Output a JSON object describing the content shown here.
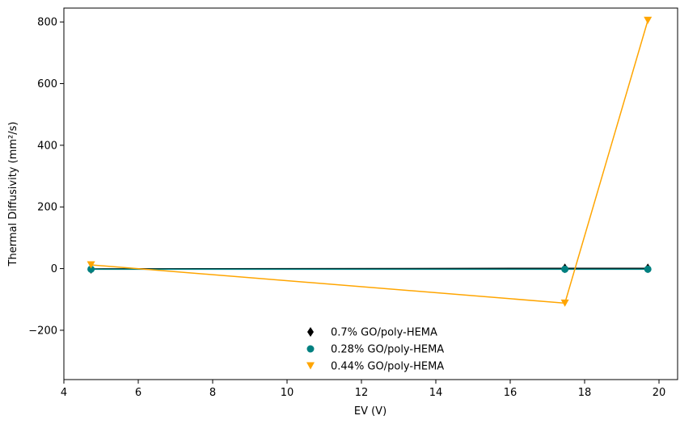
{
  "chart_data": {
    "type": "line",
    "xlabel": "EV (V)",
    "ylabel": "Thermal Diffusivity (mm²/s)",
    "xlim": [
      4,
      20.5
    ],
    "ylim": [
      -360,
      845
    ],
    "x_ticks": [
      4,
      6,
      8,
      10,
      12,
      14,
      16,
      18,
      20
    ],
    "y_ticks": [
      -200,
      0,
      200,
      400,
      600,
      800
    ],
    "y_tick_labels": [
      "−200",
      "0",
      "200",
      "400",
      "600",
      "800"
    ],
    "grid": false,
    "legend_position": "lower center",
    "series": [
      {
        "name": "0.7% GO/poly-HEMA",
        "marker": "diamond",
        "color": "#000000",
        "x": [
          4.73,
          17.47,
          19.7
        ],
        "y": [
          -1,
          1,
          1
        ]
      },
      {
        "name": "0.28% GO/poly-HEMA",
        "marker": "circle",
        "color": "#008080",
        "x": [
          4.73,
          17.47,
          19.7
        ],
        "y": [
          -2,
          -2,
          -2
        ]
      },
      {
        "name": "0.44% GO/poly-HEMA",
        "marker": "triangle-down",
        "color": "#FFA500",
        "x": [
          4.73,
          17.47,
          19.7
        ],
        "y": [
          12,
          -112,
          805
        ]
      }
    ]
  }
}
